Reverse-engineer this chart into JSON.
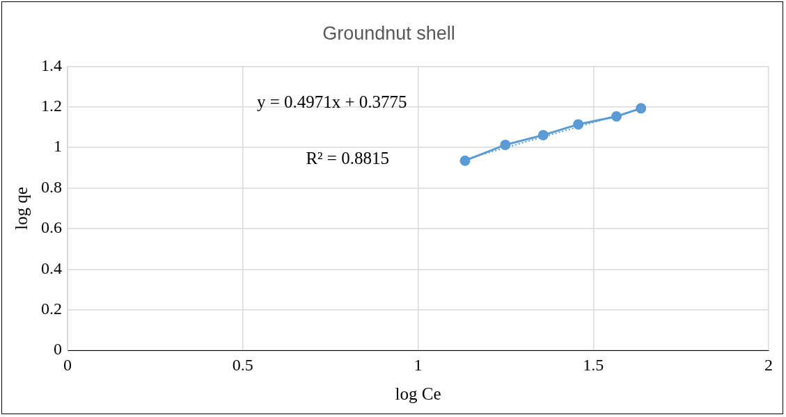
{
  "chart_data": {
    "type": "scatter",
    "title": "Groundnut shell",
    "xlabel": "log Ce",
    "ylabel": "log qe",
    "series": [
      {
        "type": "line",
        "color": "#5b9bd5",
        "marker": "circle",
        "line_style": "solid",
        "x": [
          1.134,
          1.249,
          1.357,
          1.457,
          1.566,
          1.636
        ],
        "values": [
          0.935,
          1.013,
          1.061,
          1.114,
          1.153,
          1.193
        ]
      },
      {
        "type": "line",
        "color": "#5b9bd5",
        "marker": "none",
        "line_style": "dotted",
        "x": [
          1.134,
          1.636
        ],
        "values": [
          0.941,
          1.191
        ]
      }
    ],
    "xlim": [
      0,
      2
    ],
    "xticks": [
      0,
      0.5,
      1,
      1.5,
      2
    ],
    "ylim": [
      0,
      1.4
    ],
    "yticks": [
      0,
      0.2,
      0.4,
      0.6,
      0.8,
      1,
      1.2,
      1.4
    ],
    "grid": true,
    "legend": false,
    "annotations": [
      "y = 0.4971x + 0.3775",
      "R² = 0.8815"
    ]
  }
}
